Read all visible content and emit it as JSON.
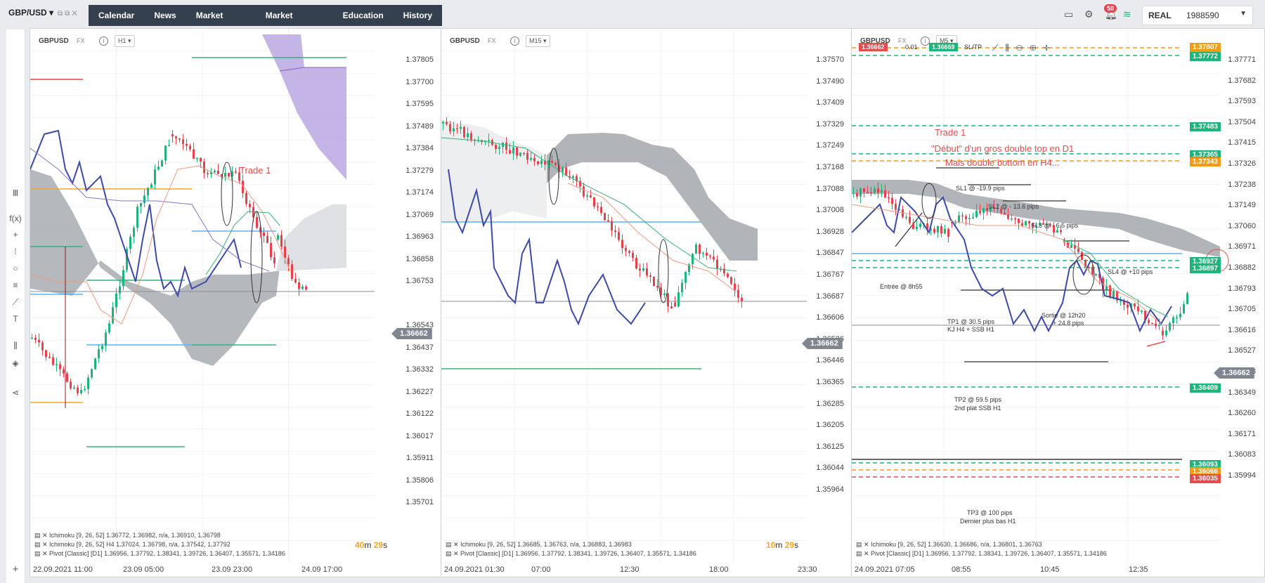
{
  "topbar": {
    "symbol": "GBP/USD",
    "nav": [
      "Calendar",
      "News",
      "Market Watch",
      "Market analysis",
      "Education",
      "History"
    ],
    "notifications": "58",
    "account_type": "REAL",
    "account_number": "1988590",
    "icons": [
      "layout-icon",
      "signal-icon",
      "bell-icon",
      "wifi-icon"
    ]
  },
  "lefttools": [
    "bars-icon",
    "fx-icon",
    "crosshair-icon",
    "vertical-line-icon",
    "circle-icon",
    "fib-icon",
    "trend-icon",
    "text-icon",
    "indicator-icon",
    "layers-icon",
    "share-icon",
    "add-icon"
  ],
  "panels": [
    {
      "symbol": "GBPUSD",
      "fx": "FX",
      "timeframe": "H1",
      "price_labels": [
        "1.37805",
        "1.37700",
        "1.37595",
        "1.37489",
        "1.37384",
        "1.37279",
        "1.37174",
        "1.37069",
        "1.36963",
        "1.36858",
        "1.36753",
        "1.36543",
        "1.36437",
        "1.36332",
        "1.36227",
        "1.36122",
        "1.36017",
        "1.35911",
        "1.35806",
        "1.35701"
      ],
      "current_price": "1.36662",
      "x_labels": [
        "22.09.2021 11:00",
        "23.09 05:00",
        "23.09 23:00",
        "24.09 17:00"
      ],
      "legend": [
        "Ichimoku [9, 26, 52] 1.36772, 1.36982, n/a, 1.36910, 1.36798",
        "Ichimoku [9, 26, 52] H4 1.37024, 1.36798, n/a, 1.37542, 1.37792",
        "Pivot [Classic] [D1] 1.36956, 1.37792, 1.38341, 1.39726, 1.36407, 1.35571, 1.34186"
      ],
      "timer_m": "40",
      "timer_m_unit": "m",
      "timer_s": "29",
      "timer_s_unit": "s",
      "annotation": "Trade 1"
    },
    {
      "symbol": "GBPUSD",
      "fx": "FX",
      "timeframe": "M15",
      "price_labels": [
        "1.37570",
        "1.37490",
        "1.37409",
        "1.37329",
        "1.37249",
        "1.37168",
        "1.37088",
        "1.37008",
        "1.36928",
        "1.36847",
        "1.36767",
        "1.36687",
        "1.36606",
        "1.36526",
        "1.36446",
        "1.36365",
        "1.36285",
        "1.36205",
        "1.36125",
        "1.36044",
        "1.35964"
      ],
      "current_price": "1.36662",
      "x_labels": [
        "24.09.2021 01:30",
        "07:00",
        "12:30",
        "18:00",
        "23:30"
      ],
      "legend": [
        "Ichimoku [9, 26, 52] 1.36685, 1.36763, n/a, 1.36883, 1.36983",
        "Pivot [Classic] [D1] 1.36956, 1.37792, 1.38341, 1.39726, 1.36407, 1.35571, 1.34186"
      ],
      "timer_m": "10",
      "timer_m_unit": "m",
      "timer_s": "29",
      "timer_s_unit": "s"
    },
    {
      "symbol": "GBPUSD",
      "fx": "FX",
      "timeframe": "M5",
      "sell_price": "1.36662",
      "qty": "0.01",
      "buy_price": "1.36669",
      "sltp": "SL/TP",
      "price_labels": [
        "1.37771",
        "1.37682",
        "1.37593",
        "1.37504",
        "1.37415",
        "1.37326",
        "1.37238",
        "1.37149",
        "1.37060",
        "1.36971",
        "1.36882",
        "1.36793",
        "1.36705",
        "1.36616",
        "1.36527",
        "1.36438",
        "1.36349",
        "1.36260",
        "1.36171",
        "1.36083",
        "1.35994"
      ],
      "current_price": "1.36662",
      "x_labels": [
        "24.09.2021 07:05",
        "08:55",
        "10:45",
        "12:35"
      ],
      "legend": [
        "Ichimoku [9, 26, 52] 1.36630, 1.36686, n/a, 1.36801, 1.36763",
        "Pivot [Classic] [D1] 1.36956, 1.37792, 1.38341, 1.39726, 1.36407, 1.35571, 1.34186"
      ],
      "level_tags": [
        {
          "label": "1.37807",
          "color": "#f39c12"
        },
        {
          "label": "1.37772",
          "color": "#1db67a"
        },
        {
          "label": "1.37483",
          "color": "#1db67a"
        },
        {
          "label": "1.37365",
          "color": "#1db67a"
        },
        {
          "label": "1.37343",
          "color": "#f39c12"
        },
        {
          "label": "1.36927",
          "color": "#1db67a"
        },
        {
          "label": "1.36897",
          "color": "#1db67a"
        },
        {
          "label": "1.36409",
          "color": "#1db67a"
        },
        {
          "label": "1.36093",
          "color": "#1db67a"
        },
        {
          "label": "1.36066",
          "color": "#f39c12"
        },
        {
          "label": "1.36035",
          "color": "#e74c4c"
        }
      ],
      "red_notes": [
        "Trade 1",
        "\"Début\" d'un gros double top en D1",
        "Mais double bottom en H4..."
      ],
      "notes": [
        "SL1 @ -19.9 pips",
        "SL2 @ - 13.6 pips",
        "SL3 @ - 6.5 pips",
        "SL4 @ +10 pips",
        "Entrée @ 8h55",
        "Sortie @ 12h20",
        "+ 24.8 pips",
        "TP1 @ 30.5 pips",
        "KJ H4 + SSB H1",
        "TP2 @ 59.5 pips",
        "2nd plat SSB H1",
        "TP3 @ 100 pips",
        "Dernier plus bas H1"
      ]
    }
  ],
  "colors": {
    "up": "#1db67a",
    "down": "#e8414b",
    "kumo_gray": "#a8adb3",
    "kumo_purple": "#b7a3e0",
    "blue_line": "#3d4aa8"
  }
}
